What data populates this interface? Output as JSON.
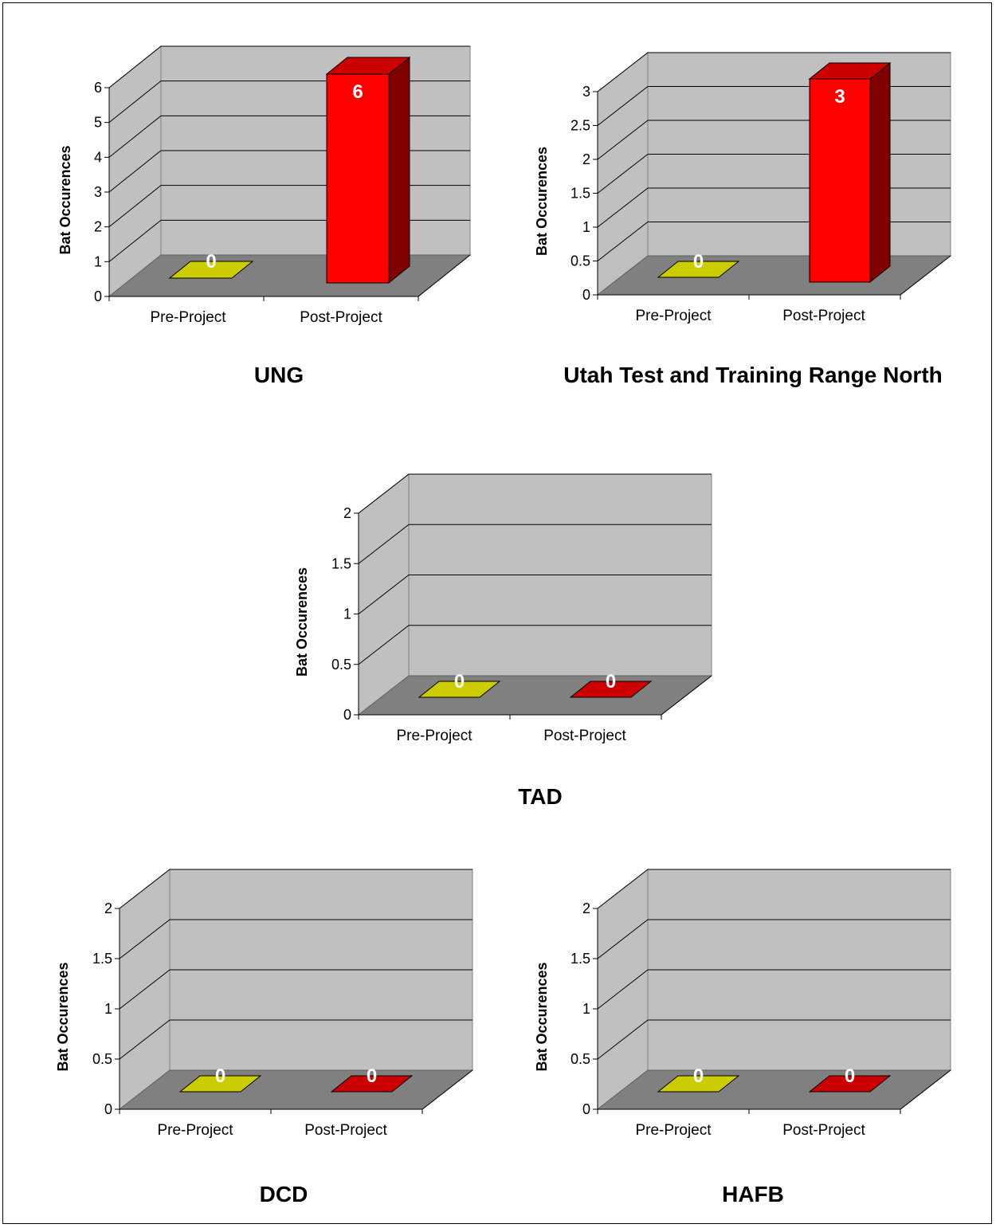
{
  "chart_data": [
    {
      "type": "bar",
      "title": "UNG",
      "ylabel": "Bat Occurences",
      "categories": [
        "Pre-Project",
        "Post-Project"
      ],
      "values": [
        0,
        6
      ],
      "data_labels": [
        "0",
        "6"
      ],
      "ylim": [
        0,
        6
      ],
      "yticks": [
        "0",
        "1",
        "2",
        "3",
        "4",
        "5",
        "6"
      ],
      "bar_colors": [
        "#cccc00",
        "#ff0000"
      ],
      "grid": true,
      "style": "3d"
    },
    {
      "type": "bar",
      "title": "Utah Test and Training Range North",
      "ylabel": "Bat Occurences",
      "categories": [
        "Pre-Project",
        "Post-Project"
      ],
      "values": [
        0,
        3
      ],
      "data_labels": [
        "0",
        "3"
      ],
      "ylim": [
        0,
        3
      ],
      "yticks": [
        "0",
        "0.5",
        "1",
        "1.5",
        "2",
        "2.5",
        "3"
      ],
      "bar_colors": [
        "#cccc00",
        "#ff0000"
      ],
      "grid": true,
      "style": "3d"
    },
    {
      "type": "bar",
      "title": "TAD",
      "ylabel": "Bat Occurences",
      "categories": [
        "Pre-Project",
        "Post-Project"
      ],
      "values": [
        0,
        0
      ],
      "data_labels": [
        "0",
        "0"
      ],
      "ylim": [
        0,
        2
      ],
      "yticks": [
        "0",
        "0.5",
        "1",
        "1.5",
        "2"
      ],
      "bar_colors": [
        "#cccc00",
        "#cc0000"
      ],
      "grid": true,
      "style": "3d"
    },
    {
      "type": "bar",
      "title": "DCD",
      "ylabel": "Bat Occurences",
      "categories": [
        "Pre-Project",
        "Post-Project"
      ],
      "values": [
        0,
        0
      ],
      "data_labels": [
        "0",
        "0"
      ],
      "ylim": [
        0,
        2
      ],
      "yticks": [
        "0",
        "0.5",
        "1",
        "1.5",
        "2"
      ],
      "bar_colors": [
        "#cccc00",
        "#cc0000"
      ],
      "grid": true,
      "style": "3d"
    },
    {
      "type": "bar",
      "title": "HAFB",
      "ylabel": "Bat Occurences",
      "categories": [
        "Pre-Project",
        "Post-Project"
      ],
      "values": [
        0,
        0
      ],
      "data_labels": [
        "0",
        "0"
      ],
      "ylim": [
        0,
        2
      ],
      "yticks": [
        "0",
        "0.5",
        "1",
        "1.5",
        "2"
      ],
      "bar_colors": [
        "#cccc00",
        "#cc0000"
      ],
      "grid": true,
      "style": "3d"
    }
  ],
  "colors": {
    "wall": "#c0c0c0",
    "floor": "#808080",
    "gridline": "#000000"
  }
}
